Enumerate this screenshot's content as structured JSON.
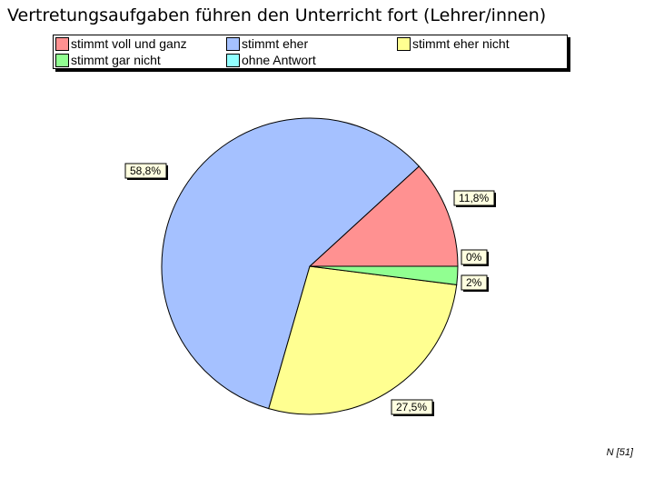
{
  "chart_data": {
    "type": "pie",
    "title": "Vertretungsaufgaben führen den Unterricht fort (Lehrer/innen)",
    "slices": [
      {
        "name": "stimmt voll und ganz",
        "value": 11.8,
        "label": "11,8%",
        "color": "#ff9191"
      },
      {
        "name": "stimmt eher",
        "value": 58.8,
        "label": "58,8%",
        "color": "#a5c1ff"
      },
      {
        "name": "stimmt eher nicht",
        "value": 27.5,
        "label": "27,5%",
        "color": "#ffff91"
      },
      {
        "name": "stimmt gar nicht",
        "value": 2,
        "label": "2%",
        "color": "#91ff91"
      },
      {
        "name": "ohne Antwort",
        "value": 0,
        "label": "0%",
        "color": "#91ffff"
      }
    ],
    "legend_position": "top",
    "footnote": "N [51]"
  }
}
